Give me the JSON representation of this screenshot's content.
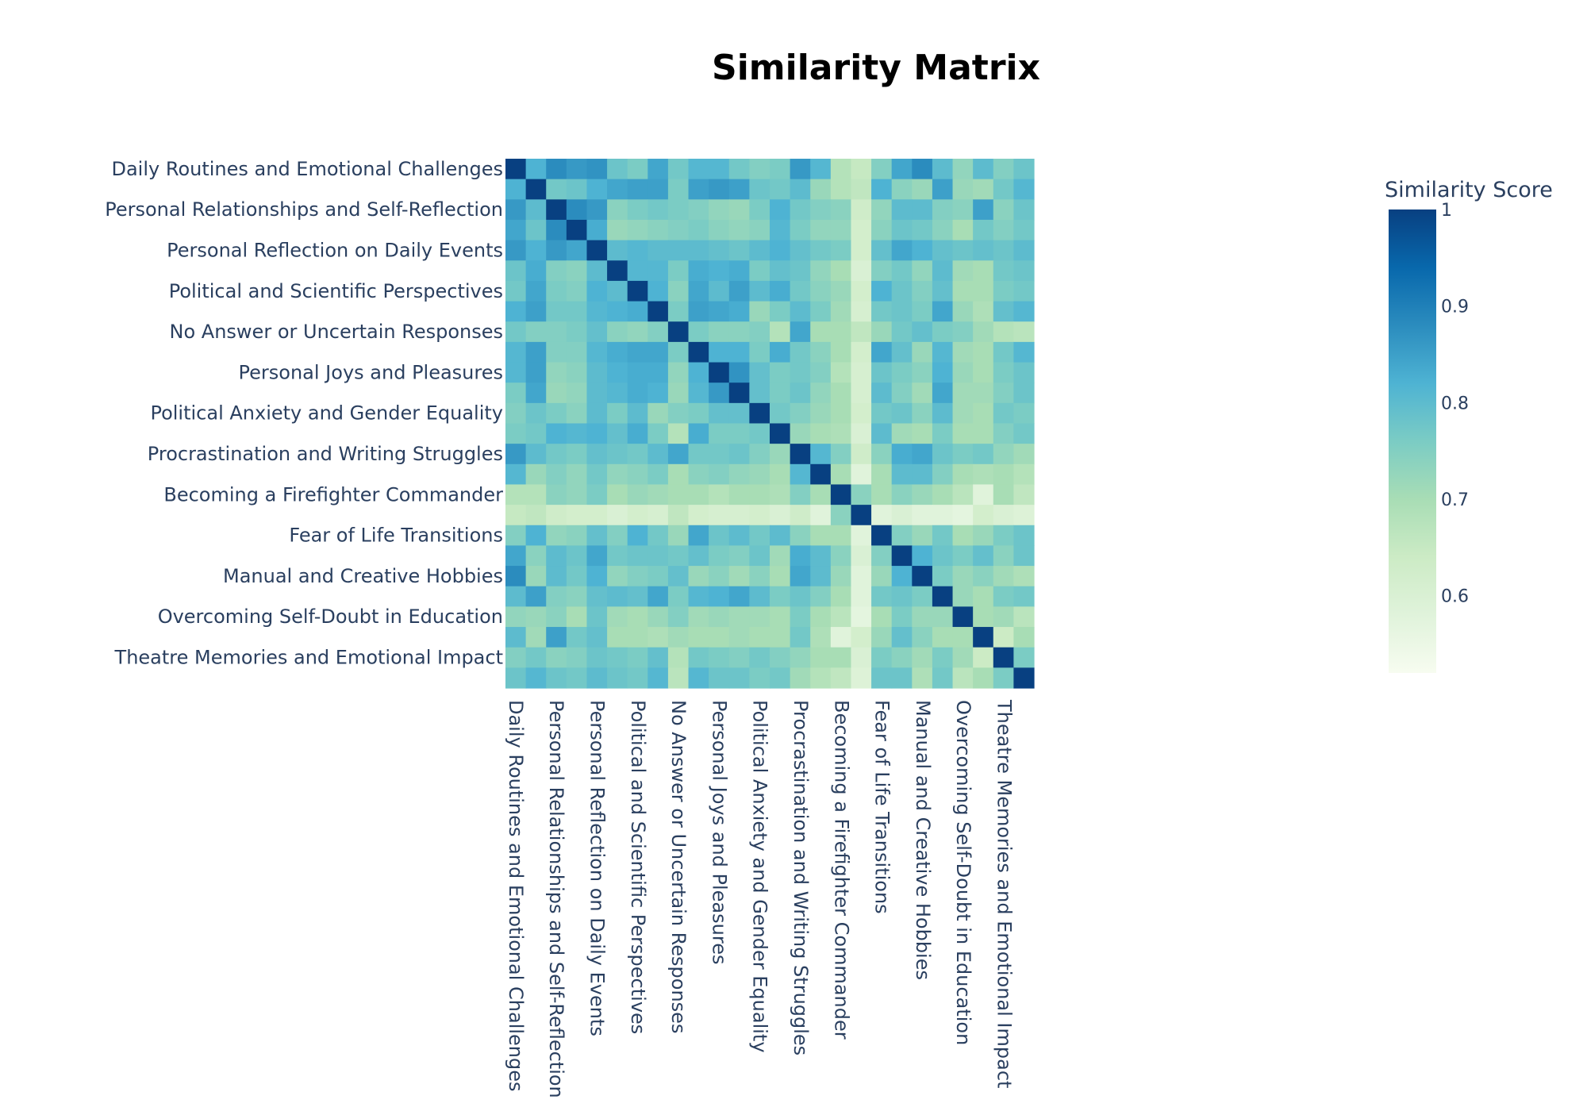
{
  "chart_data": {
    "type": "heatmap",
    "title": "Similarity Matrix",
    "colorbar_title": "Similarity Score",
    "colorscale_name": "GnBu",
    "colorscale": [
      "#f7fcf0",
      "#e0f3db",
      "#ccebc5",
      "#a8ddb5",
      "#7bccc4",
      "#4eb3d3",
      "#2b8cbe",
      "#0868ac",
      "#084081"
    ],
    "zmin": 0.52,
    "zmax": 1.0,
    "colorbar_ticks": [
      0.6,
      0.7,
      0.8,
      0.9,
      1
    ],
    "colorbar_tick_labels": [
      "0.6",
      "0.7",
      "0.8",
      "0.9",
      "1"
    ],
    "n": 26,
    "labels": [
      "Daily Routines and Emotional Challenges",
      "Personal Relationships and Self-Reflection",
      "Personal Reflection on Daily Events",
      "Political and Scientific Perspectives",
      "No Answer or Uncertain Responses",
      "Personal Joys and Pleasures",
      "Political Anxiety and Gender Equality",
      "Procrastination and Writing Struggles",
      "Becoming a Firefighter Commander",
      "Fear of Life Transitions",
      "Manual and Creative Hobbies",
      "Overcoming Self-Doubt in Education",
      "Theatre Memories and Emotional Impact"
    ],
    "label_rows": [
      0,
      2,
      4,
      6,
      8,
      10,
      12,
      14,
      16,
      18,
      20,
      22,
      24
    ],
    "values": [
      [
        1.0,
        0.82,
        0.88,
        0.86,
        0.87,
        0.78,
        0.76,
        0.84,
        0.77,
        0.81,
        0.81,
        0.77,
        0.75,
        0.76,
        0.86,
        0.81,
        0.68,
        0.65,
        0.75,
        0.84,
        0.88,
        0.8,
        0.73,
        0.8,
        0.75,
        0.78
      ],
      [
        0.82,
        1.0,
        0.77,
        0.78,
        0.82,
        0.84,
        0.85,
        0.85,
        0.76,
        0.85,
        0.86,
        0.85,
        0.78,
        0.77,
        0.8,
        0.72,
        0.68,
        0.66,
        0.82,
        0.74,
        0.72,
        0.85,
        0.72,
        0.71,
        0.77,
        0.81
      ],
      [
        0.86,
        0.8,
        1.0,
        0.88,
        0.86,
        0.74,
        0.76,
        0.77,
        0.76,
        0.75,
        0.73,
        0.72,
        0.76,
        0.82,
        0.77,
        0.75,
        0.74,
        0.63,
        0.73,
        0.8,
        0.8,
        0.75,
        0.74,
        0.85,
        0.74,
        0.78
      ],
      [
        0.84,
        0.78,
        0.88,
        1.0,
        0.83,
        0.72,
        0.73,
        0.74,
        0.75,
        0.76,
        0.74,
        0.73,
        0.74,
        0.81,
        0.76,
        0.73,
        0.73,
        0.62,
        0.74,
        0.78,
        0.77,
        0.74,
        0.7,
        0.77,
        0.75,
        0.77
      ],
      [
        0.86,
        0.82,
        0.86,
        0.84,
        1.0,
        0.8,
        0.81,
        0.8,
        0.8,
        0.8,
        0.79,
        0.78,
        0.8,
        0.82,
        0.79,
        0.77,
        0.76,
        0.62,
        0.79,
        0.84,
        0.82,
        0.79,
        0.78,
        0.79,
        0.78,
        0.8
      ],
      [
        0.78,
        0.83,
        0.75,
        0.74,
        0.8,
        1.0,
        0.81,
        0.81,
        0.76,
        0.83,
        0.82,
        0.83,
        0.76,
        0.79,
        0.78,
        0.73,
        0.7,
        0.6,
        0.75,
        0.77,
        0.73,
        0.8,
        0.71,
        0.7,
        0.77,
        0.78
      ],
      [
        0.77,
        0.84,
        0.76,
        0.75,
        0.82,
        0.8,
        1.0,
        0.82,
        0.74,
        0.84,
        0.8,
        0.85,
        0.8,
        0.83,
        0.77,
        0.74,
        0.72,
        0.62,
        0.82,
        0.78,
        0.75,
        0.79,
        0.7,
        0.7,
        0.76,
        0.77
      ],
      [
        0.82,
        0.85,
        0.77,
        0.77,
        0.81,
        0.82,
        0.83,
        1.0,
        0.76,
        0.85,
        0.84,
        0.83,
        0.72,
        0.76,
        0.8,
        0.76,
        0.71,
        0.61,
        0.77,
        0.78,
        0.76,
        0.84,
        0.72,
        0.69,
        0.79,
        0.81
      ],
      [
        0.77,
        0.75,
        0.75,
        0.76,
        0.79,
        0.74,
        0.73,
        0.75,
        1.0,
        0.76,
        0.74,
        0.74,
        0.75,
        0.68,
        0.84,
        0.7,
        0.7,
        0.66,
        0.72,
        0.77,
        0.79,
        0.76,
        0.75,
        0.71,
        0.68,
        0.67
      ],
      [
        0.81,
        0.85,
        0.75,
        0.75,
        0.81,
        0.83,
        0.84,
        0.84,
        0.76,
        1.0,
        0.82,
        0.82,
        0.76,
        0.83,
        0.77,
        0.74,
        0.7,
        0.62,
        0.84,
        0.79,
        0.72,
        0.81,
        0.71,
        0.7,
        0.77,
        0.81
      ],
      [
        0.81,
        0.85,
        0.73,
        0.74,
        0.8,
        0.82,
        0.83,
        0.83,
        0.73,
        0.82,
        1.0,
        0.87,
        0.79,
        0.76,
        0.77,
        0.75,
        0.68,
        0.61,
        0.78,
        0.76,
        0.74,
        0.82,
        0.72,
        0.7,
        0.76,
        0.78
      ],
      [
        0.76,
        0.84,
        0.72,
        0.73,
        0.8,
        0.81,
        0.83,
        0.82,
        0.72,
        0.81,
        0.86,
        1.0,
        0.79,
        0.76,
        0.78,
        0.73,
        0.7,
        0.61,
        0.8,
        0.75,
        0.71,
        0.84,
        0.71,
        0.71,
        0.75,
        0.78
      ],
      [
        0.75,
        0.78,
        0.76,
        0.74,
        0.8,
        0.76,
        0.8,
        0.72,
        0.75,
        0.76,
        0.79,
        0.79,
        1.0,
        0.77,
        0.75,
        0.72,
        0.7,
        0.62,
        0.77,
        0.78,
        0.74,
        0.8,
        0.71,
        0.7,
        0.77,
        0.76
      ],
      [
        0.76,
        0.77,
        0.82,
        0.81,
        0.82,
        0.79,
        0.83,
        0.76,
        0.68,
        0.83,
        0.76,
        0.76,
        0.77,
        1.0,
        0.72,
        0.7,
        0.69,
        0.6,
        0.8,
        0.71,
        0.7,
        0.76,
        0.7,
        0.7,
        0.75,
        0.77
      ],
      [
        0.86,
        0.8,
        0.77,
        0.76,
        0.79,
        0.78,
        0.77,
        0.8,
        0.84,
        0.77,
        0.77,
        0.78,
        0.75,
        0.72,
        1.0,
        0.81,
        0.75,
        0.63,
        0.74,
        0.83,
        0.84,
        0.78,
        0.76,
        0.77,
        0.73,
        0.71
      ],
      [
        0.81,
        0.72,
        0.75,
        0.73,
        0.77,
        0.73,
        0.74,
        0.76,
        0.7,
        0.74,
        0.75,
        0.73,
        0.72,
        0.7,
        0.81,
        1.0,
        0.7,
        0.58,
        0.7,
        0.8,
        0.8,
        0.75,
        0.7,
        0.69,
        0.7,
        0.68
      ],
      [
        0.68,
        0.68,
        0.74,
        0.73,
        0.76,
        0.7,
        0.72,
        0.71,
        0.7,
        0.7,
        0.68,
        0.7,
        0.7,
        0.69,
        0.75,
        0.7,
        1.0,
        0.74,
        0.7,
        0.74,
        0.72,
        0.7,
        0.67,
        0.58,
        0.7,
        0.66
      ],
      [
        0.65,
        0.66,
        0.63,
        0.62,
        0.62,
        0.6,
        0.62,
        0.61,
        0.66,
        0.62,
        0.61,
        0.61,
        0.62,
        0.6,
        0.63,
        0.58,
        0.74,
        1.0,
        0.58,
        0.6,
        0.58,
        0.58,
        0.57,
        0.62,
        0.6,
        0.59
      ],
      [
        0.75,
        0.82,
        0.73,
        0.74,
        0.79,
        0.75,
        0.82,
        0.77,
        0.72,
        0.84,
        0.78,
        0.8,
        0.77,
        0.8,
        0.74,
        0.7,
        0.7,
        0.58,
        1.0,
        0.75,
        0.72,
        0.77,
        0.7,
        0.72,
        0.76,
        0.78
      ],
      [
        0.84,
        0.74,
        0.8,
        0.78,
        0.84,
        0.77,
        0.78,
        0.78,
        0.77,
        0.79,
        0.76,
        0.75,
        0.78,
        0.71,
        0.83,
        0.8,
        0.74,
        0.6,
        0.75,
        1.0,
        0.82,
        0.78,
        0.76,
        0.79,
        0.74,
        0.78
      ],
      [
        0.88,
        0.72,
        0.8,
        0.77,
        0.82,
        0.73,
        0.75,
        0.76,
        0.79,
        0.72,
        0.74,
        0.71,
        0.74,
        0.7,
        0.84,
        0.8,
        0.72,
        0.58,
        0.72,
        0.82,
        1.0,
        0.76,
        0.72,
        0.74,
        0.71,
        0.69
      ],
      [
        0.8,
        0.85,
        0.75,
        0.74,
        0.79,
        0.8,
        0.79,
        0.84,
        0.76,
        0.81,
        0.82,
        0.84,
        0.8,
        0.76,
        0.78,
        0.75,
        0.7,
        0.58,
        0.77,
        0.78,
        0.76,
        1.0,
        0.72,
        0.7,
        0.76,
        0.77
      ],
      [
        0.73,
        0.72,
        0.74,
        0.7,
        0.78,
        0.71,
        0.7,
        0.72,
        0.75,
        0.71,
        0.72,
        0.71,
        0.71,
        0.7,
        0.76,
        0.7,
        0.67,
        0.57,
        0.7,
        0.76,
        0.72,
        0.72,
        1.0,
        0.7,
        0.71,
        0.67
      ],
      [
        0.8,
        0.71,
        0.85,
        0.77,
        0.79,
        0.7,
        0.7,
        0.69,
        0.71,
        0.7,
        0.7,
        0.71,
        0.7,
        0.7,
        0.77,
        0.69,
        0.58,
        0.62,
        0.72,
        0.79,
        0.74,
        0.7,
        0.7,
        1.0,
        0.64,
        0.7
      ],
      [
        0.75,
        0.77,
        0.74,
        0.75,
        0.78,
        0.77,
        0.76,
        0.79,
        0.68,
        0.77,
        0.76,
        0.75,
        0.77,
        0.75,
        0.73,
        0.7,
        0.7,
        0.6,
        0.76,
        0.74,
        0.71,
        0.76,
        0.71,
        0.64,
        1.0,
        0.76
      ],
      [
        0.78,
        0.81,
        0.78,
        0.77,
        0.8,
        0.78,
        0.77,
        0.81,
        0.67,
        0.81,
        0.78,
        0.78,
        0.76,
        0.77,
        0.71,
        0.68,
        0.66,
        0.59,
        0.78,
        0.78,
        0.69,
        0.77,
        0.67,
        0.7,
        0.76,
        1.0
      ]
    ]
  }
}
